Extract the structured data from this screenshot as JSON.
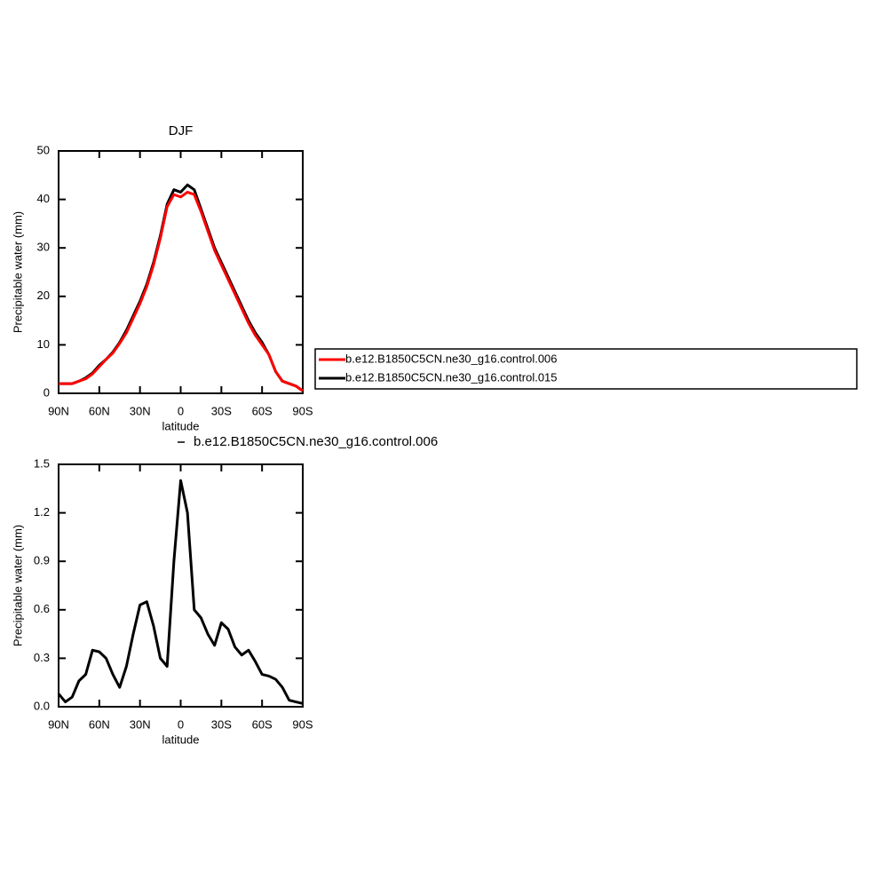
{
  "chart_data": [
    {
      "type": "line",
      "title": "DJF",
      "x_label": "latitude",
      "y_label": "Precipitable water (mm)",
      "x": [
        90,
        85,
        80,
        75,
        70,
        65,
        60,
        55,
        50,
        45,
        40,
        35,
        30,
        25,
        20,
        15,
        10,
        5,
        0,
        -5,
        -10,
        -15,
        -20,
        -25,
        -30,
        -35,
        -40,
        -45,
        -50,
        -55,
        -60,
        -65,
        -70,
        -75,
        -80,
        -85,
        -90
      ],
      "series": [
        {
          "name": "b.e12.B1850C5CN.ne30_g16.control.015",
          "color": "#000000",
          "values": [
            2,
            2,
            2,
            2.5,
            3.2,
            4.2,
            5.8,
            7,
            8.5,
            10.5,
            13,
            16,
            19,
            22.5,
            27,
            32.5,
            39,
            42,
            41.5,
            43,
            42,
            38,
            34,
            30,
            27,
            24,
            21,
            18,
            15,
            12.5,
            10.5,
            8,
            4.5,
            2.5,
            2,
            1.5,
            0.5
          ]
        },
        {
          "name": "b.e12.B1850C5CN.ne30_g16.control.006",
          "color": "#ff0000",
          "values": [
            2,
            2,
            2,
            2.5,
            3,
            4,
            5.5,
            7,
            8.3,
            10.3,
            12.5,
            15.5,
            18.5,
            22,
            26.5,
            32,
            38.5,
            41,
            40.5,
            41.5,
            41,
            37.5,
            33.5,
            29.5,
            26.5,
            23.5,
            20.5,
            17.5,
            14.5,
            12,
            10,
            8,
            4.5,
            2.5,
            2,
            1.5,
            0.5
          ]
        }
      ],
      "legend_order": [
        1,
        0
      ],
      "xlim": [
        90,
        -90
      ],
      "xticks": [
        {
          "value": 90,
          "label": "90N"
        },
        {
          "value": 60,
          "label": "60N"
        },
        {
          "value": 30,
          "label": "30N"
        },
        0,
        {
          "value": -30,
          "label": "30S"
        },
        {
          "value": -60,
          "label": "60S"
        },
        {
          "value": -90,
          "label": "90S"
        }
      ],
      "ylim": [
        0,
        50
      ],
      "yticks": [
        0,
        10,
        20,
        30,
        40,
        50
      ],
      "legend_position": "right"
    },
    {
      "type": "line",
      "x_label": "latitude",
      "y_label": "Precipitable water (mm)",
      "x": [
        90,
        85,
        80,
        75,
        70,
        65,
        60,
        55,
        50,
        45,
        40,
        35,
        30,
        25,
        20,
        15,
        10,
        5,
        0,
        -5,
        -10,
        -15,
        -20,
        -25,
        -30,
        -35,
        -40,
        -45,
        -50,
        -55,
        -60,
        -65,
        -70,
        -75,
        -80,
        -85,
        -90
      ],
      "series": [
        {
          "name": "b.e12.B1850C5CN.ne30_g16.control.006",
          "color": "#000000",
          "values": [
            0.08,
            0.03,
            0.06,
            0.16,
            0.2,
            0.35,
            0.34,
            0.3,
            0.2,
            0.12,
            0.25,
            0.45,
            0.63,
            0.65,
            0.5,
            0.3,
            0.25,
            0.9,
            1.4,
            1.2,
            0.6,
            0.55,
            0.45,
            0.38,
            0.52,
            0.48,
            0.37,
            0.32,
            0.35,
            0.28,
            0.2,
            0.19,
            0.17,
            0.12,
            0.04,
            0.03,
            0.02
          ]
        }
      ],
      "legend_order": [
        0
      ],
      "xlim": [
        90,
        -90
      ],
      "xticks": [
        {
          "value": 90,
          "label": "90N"
        },
        {
          "value": 60,
          "label": "60N"
        },
        {
          "value": 30,
          "label": "30N"
        },
        0,
        {
          "value": -30,
          "label": "30S"
        },
        {
          "value": -60,
          "label": "60S"
        },
        {
          "value": -90,
          "label": "90S"
        }
      ],
      "ylim": [
        0,
        1.5
      ],
      "yticks": [
        {
          "value": 0,
          "label": "0.0"
        },
        0.3,
        0.6,
        0.9,
        1.2,
        1.5
      ],
      "legend_position": "top"
    }
  ]
}
